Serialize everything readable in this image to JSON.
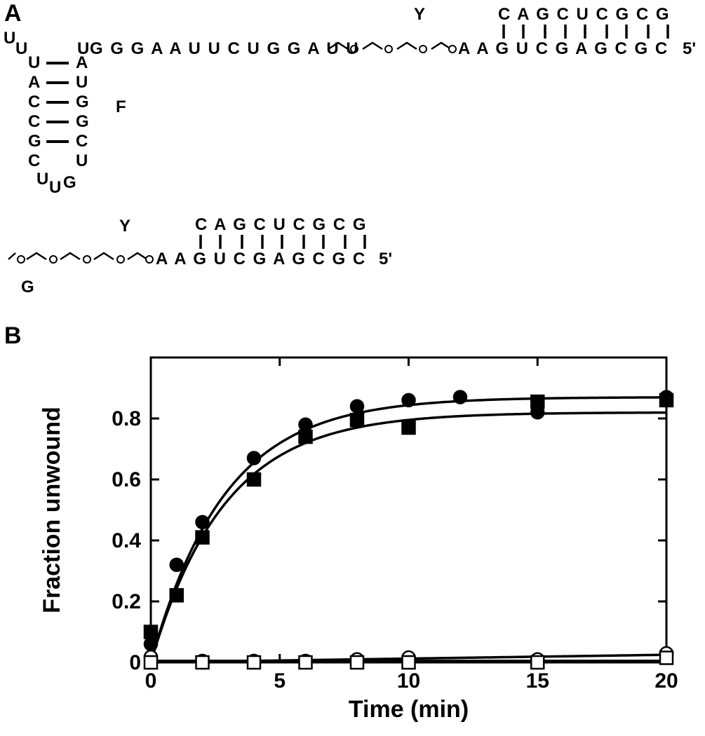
{
  "panels": {
    "A_label": "A",
    "B_label": "B",
    "Y_label_top": "Y",
    "Y_label_bottom": "Y",
    "F_label": "F",
    "G_label": "G",
    "five_prime_top": "5'",
    "five_prime_bottom": "5'"
  },
  "A": {
    "duplex_top_seq": "C A G C U C G C G",
    "duplex_bottom_right": "A A G U C G A G C G C",
    "long_top_seq": "G G G A A U U C U G G A U U",
    "stem_left_top": [
      "U",
      "U",
      "U",
      "A",
      "C",
      "C",
      "G",
      "C",
      "U",
      "U",
      "G"
    ],
    "stem_right": [
      "U",
      "A",
      "U",
      "G",
      "G",
      "C",
      "U"
    ],
    "stem_pairs": [
      [
        "U",
        "A"
      ],
      [
        "A",
        "U"
      ],
      [
        "C",
        "G"
      ],
      [
        "C",
        "G"
      ],
      [
        "G",
        "C"
      ]
    ],
    "G_bottom_left": "A A G U C G A G C G C",
    "G_duplex_top": "C A G C U C G C G"
  },
  "chart": {
    "type": "line+scatter",
    "xlabel": "Time (min)",
    "ylabel": "Fraction unwound",
    "xlim": [
      0,
      20
    ],
    "ylim": [
      0,
      1
    ],
    "xticks": [
      0,
      5,
      10,
      15,
      20
    ],
    "yticks": [
      0,
      0.2,
      0.4,
      0.6,
      0.8
    ],
    "plot_bg": "#ffffff",
    "axis_color": "#000000",
    "line_color": "#000000",
    "axis_width": 3,
    "curve_width": 3.5,
    "series": [
      {
        "name": "circle-filled",
        "marker": "circle",
        "fill": "#000000",
        "stroke": "#000000",
        "size": 9,
        "x": [
          0,
          1,
          2,
          4,
          6,
          8,
          10,
          12,
          15,
          20
        ],
        "y": [
          0.06,
          0.32,
          0.46,
          0.67,
          0.78,
          0.84,
          0.86,
          0.87,
          0.82,
          0.87
        ]
      },
      {
        "name": "square-filled",
        "marker": "square",
        "fill": "#000000",
        "stroke": "#000000",
        "size": 9,
        "x": [
          0,
          1,
          2,
          4,
          6,
          8,
          10,
          15,
          20
        ],
        "y": [
          0.1,
          0.22,
          0.41,
          0.6,
          0.74,
          0.795,
          0.77,
          0.855,
          0.86
        ]
      },
      {
        "name": "circle-open",
        "marker": "circle",
        "fill": "#ffffff",
        "stroke": "#000000",
        "size": 9,
        "x": [
          0,
          2,
          4,
          6,
          8,
          10,
          15,
          20
        ],
        "y": [
          0.018,
          0.005,
          0.005,
          0.005,
          0.01,
          0.016,
          0.01,
          0.03
        ]
      },
      {
        "name": "square-open",
        "marker": "square",
        "fill": "#ffffff",
        "stroke": "#000000",
        "size": 9,
        "x": [
          0,
          2,
          4,
          6,
          8,
          10,
          15,
          20
        ],
        "y": [
          0.0,
          0.0,
          0.0,
          0.0,
          0.0,
          0.0,
          0.0,
          0.015
        ]
      }
    ],
    "curves": [
      {
        "name": "upper",
        "amp": 0.87,
        "k": 0.35,
        "y0": 0.0
      },
      {
        "name": "lower",
        "amp": 0.82,
        "k": 0.35,
        "y0": 0.0
      },
      {
        "name": "baseline",
        "amp": 0.025,
        "k": 0.0,
        "y0": 0.0,
        "flat": true
      }
    ]
  },
  "style": {
    "label_fontsize": 34,
    "seq_fontsize": 24,
    "tick_fontsize": 30
  }
}
